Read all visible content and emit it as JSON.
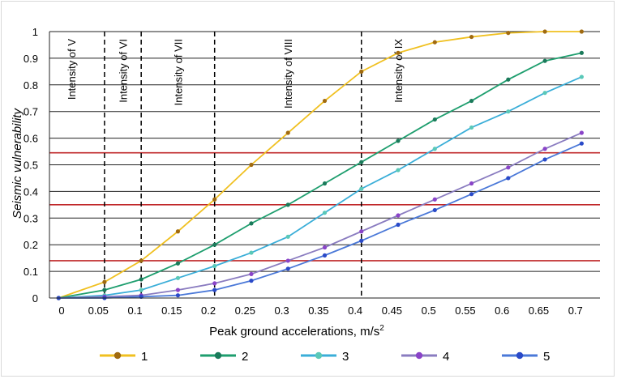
{
  "chart_data": {
    "type": "line",
    "title": "",
    "xlabel": "Peak ground accelerations, m/s",
    "xlabel_superscript": "2",
    "ylabel": "Seismic vulnerability",
    "xlim": [
      0,
      0.75
    ],
    "ylim": [
      0,
      1
    ],
    "x_ticks": [
      "0",
      "0.05",
      "0.1",
      "0.15",
      "0.2",
      "0.25",
      "0.3",
      "0.35",
      "0.4",
      "0.45",
      "0.5",
      "0.55",
      "0.6",
      "0.65",
      "0.7"
    ],
    "y_ticks": [
      "0",
      "0.1",
      "0.2",
      "0.3",
      "0.4",
      "0.5",
      "0.6",
      "0.7",
      "0.8",
      "0.9",
      "1"
    ],
    "x": [
      0.0125,
      0.075,
      0.125,
      0.175,
      0.225,
      0.275,
      0.325,
      0.375,
      0.425,
      0.475,
      0.525,
      0.575,
      0.625,
      0.675,
      0.725
    ],
    "series": [
      {
        "name": "1",
        "color": "#f0c020",
        "marker": "#a06a10",
        "values": [
          0.0,
          0.06,
          0.14,
          0.25,
          0.37,
          0.5,
          0.62,
          0.74,
          0.85,
          0.92,
          0.96,
          0.98,
          0.995,
          1.0,
          1.0
        ]
      },
      {
        "name": "2",
        "color": "#1e9e6e",
        "marker": "#1a7a5a",
        "values": [
          0.0,
          0.03,
          0.07,
          0.13,
          0.2,
          0.28,
          0.35,
          0.43,
          0.51,
          0.59,
          0.67,
          0.74,
          0.82,
          0.89,
          0.92
        ]
      },
      {
        "name": "3",
        "color": "#3aaed8",
        "marker": "#5ac8b8",
        "values": [
          0.0,
          0.01,
          0.03,
          0.075,
          0.12,
          0.17,
          0.23,
          0.32,
          0.41,
          0.48,
          0.56,
          0.64,
          0.7,
          0.77,
          0.83
        ]
      },
      {
        "name": "4",
        "color": "#8a7cc0",
        "marker": "#8a44c8",
        "values": [
          0.0,
          0.005,
          0.01,
          0.03,
          0.055,
          0.09,
          0.14,
          0.19,
          0.25,
          0.31,
          0.37,
          0.43,
          0.49,
          0.56,
          0.62
        ]
      },
      {
        "name": "5",
        "color": "#4a78d8",
        "marker": "#2a4ac8",
        "values": [
          0.0,
          0.0,
          0.005,
          0.01,
          0.03,
          0.065,
          0.11,
          0.16,
          0.215,
          0.275,
          0.33,
          0.39,
          0.45,
          0.52,
          0.58
        ]
      }
    ],
    "thresholds": [
      0.14,
      0.35,
      0.545
    ],
    "threshold_color": "#c0282a",
    "intensity_dividers": [
      0.075,
      0.125,
      0.225,
      0.425
    ],
    "intensity_labels": [
      {
        "text": "Intensity of V",
        "x": 0.03
      },
      {
        "text": "Intensity of VI",
        "x": 0.1
      },
      {
        "text": "Intensity of VII",
        "x": 0.175
      },
      {
        "text": "Intensity of VIII",
        "x": 0.325
      },
      {
        "text": "Intensity of IX",
        "x": 0.475
      }
    ],
    "grid": true,
    "legend_position": "bottom"
  }
}
